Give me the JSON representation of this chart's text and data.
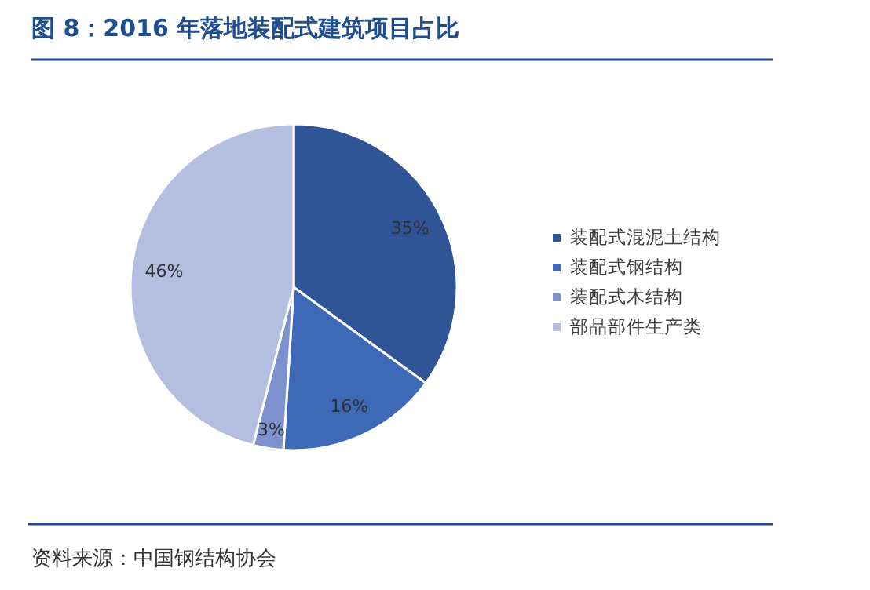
{
  "chart_data": {
    "type": "pie",
    "title": "图 8：2016 年落地装配式建筑项目占比",
    "categories": [
      "装配式混泥土结构",
      "装配式钢结构",
      "装配式木结构",
      "部品部件生产类"
    ],
    "values": [
      35,
      16,
      3,
      46
    ],
    "colors": [
      "#2f5597",
      "#3e69b7",
      "#7e91cf",
      "#b4bfe0"
    ],
    "value_labels": [
      "35%",
      "16%",
      "3%",
      "46%"
    ],
    "legend": "right",
    "annotations": [
      "资料来源：中国钢结构协会"
    ]
  }
}
